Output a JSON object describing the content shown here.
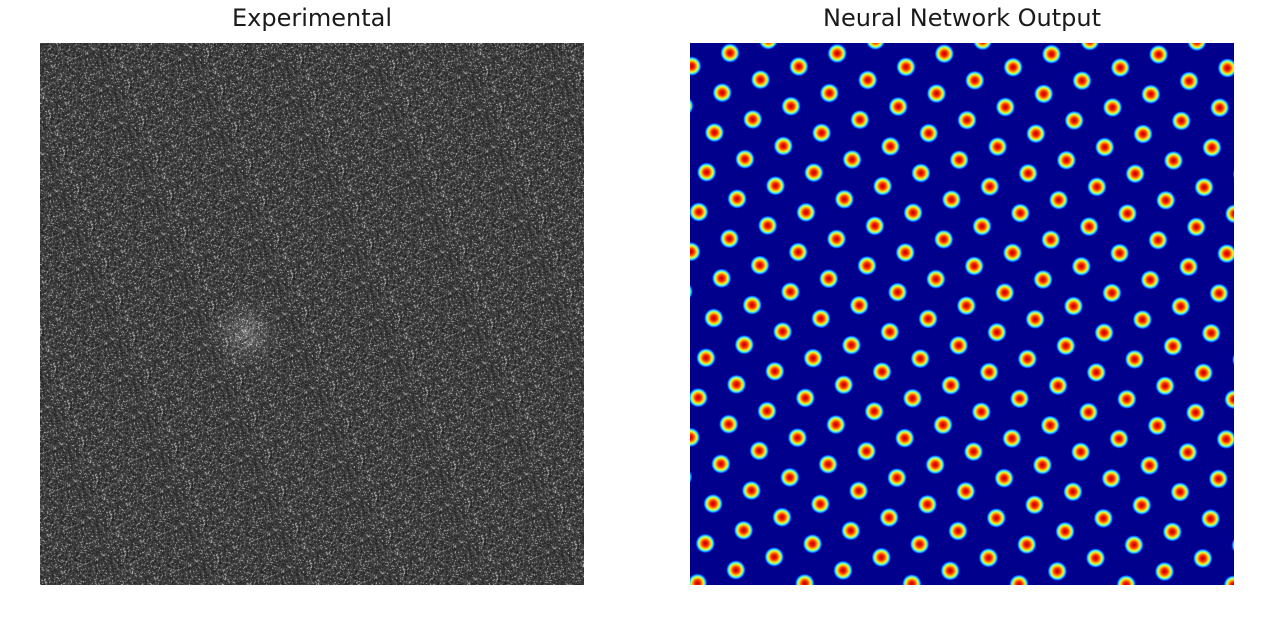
{
  "panels": [
    {
      "title": "Experimental"
    },
    {
      "title": "Neural Network Output"
    }
  ],
  "colors": {
    "experimental_background": "#3a3a3a",
    "nn_background": "#00008c",
    "spot_core": "#b40000",
    "spot_ring_1": "#ff3000",
    "spot_ring_2": "#ffd000",
    "spot_ring_3": "#a0ff60",
    "spot_ring_4": "#00c0ff"
  }
}
